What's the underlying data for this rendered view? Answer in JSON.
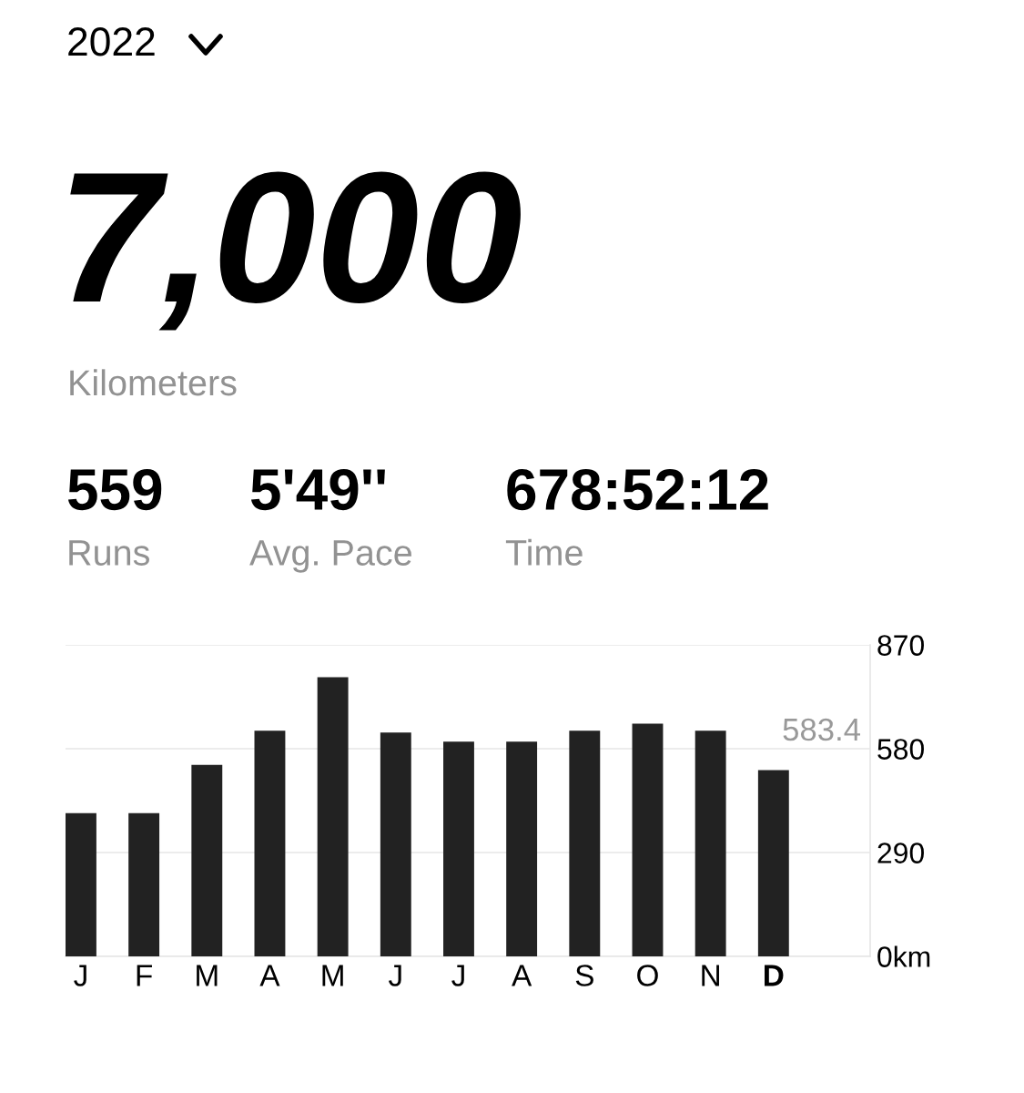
{
  "chart_data": {
    "type": "bar",
    "categories": [
      "J",
      "F",
      "M",
      "A",
      "M",
      "J",
      "J",
      "A",
      "S",
      "O",
      "N",
      "D"
    ],
    "values": [
      400,
      400,
      535,
      630,
      780,
      625,
      600,
      600,
      630,
      650,
      630,
      520
    ],
    "color": "#222222",
    "ylim": [
      0,
      870
    ],
    "yticks": [
      {
        "value": 0,
        "label": "0km"
      },
      290,
      580,
      870
    ],
    "grid": "y",
    "annotations": [
      "2022",
      "7,000",
      "Kilometers",
      "559",
      "Runs",
      "5'49''",
      "Avg. Pace",
      "678:52:12",
      "Time",
      "583.4"
    ]
  }
}
